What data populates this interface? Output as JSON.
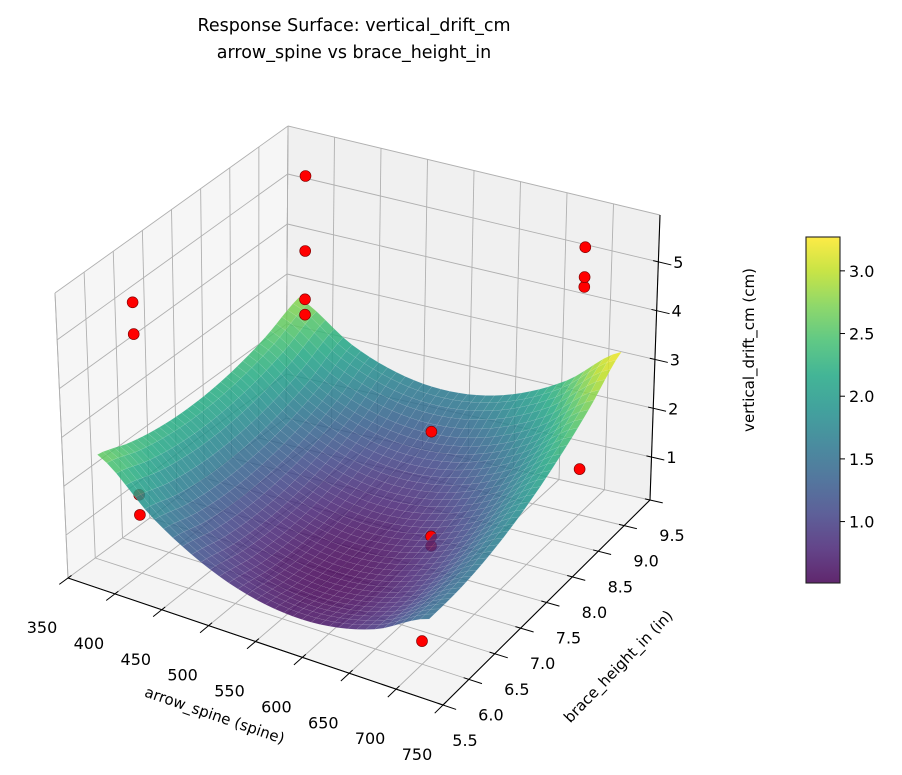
{
  "chart_data": {
    "type": "surface",
    "title": "Response Surface: vertical_drift_cm",
    "subtitle": "arrow_spine vs brace_height_in",
    "xlabel": "arrow_spine (spine)",
    "ylabel": "brace_height_in (in)",
    "zlabel": "vertical_drift_cm (cm)",
    "xlim": [
      350,
      750
    ],
    "ylim": [
      5.5,
      9.5
    ],
    "zlim": [
      0.12,
      5.96
    ],
    "xticks": [
      "350",
      "400",
      "450",
      "500",
      "550",
      "600",
      "650",
      "700",
      "750"
    ],
    "yticks": [
      "5.5",
      "6.0",
      "6.5",
      "7.0",
      "7.5",
      "8.0",
      "8.5",
      "9.0",
      "9.5"
    ],
    "zticks": [
      "1",
      "2",
      "3",
      "4",
      "5"
    ],
    "grid": true,
    "view": {
      "elev": 30,
      "azim": -60
    },
    "surface": {
      "colormap": "viridis",
      "alpha": 0.85,
      "x": [
        375,
        433.3,
        491.7,
        550,
        608.3,
        666.7,
        725
      ],
      "y": [
        5.7,
        6.3,
        6.9,
        7.5,
        8.1,
        8.7,
        9.3
      ],
      "z": [
        [
          2.64,
          1.682,
          1.031,
          0.688,
          0.651,
          0.922,
          1.5
        ],
        [
          2.392,
          1.479,
          0.872,
          0.572,
          0.58,
          0.895,
          1.518
        ],
        [
          2.254,
          1.385,
          0.822,
          0.567,
          0.619,
          0.978,
          1.644
        ],
        [
          2.226,
          1.401,
          0.882,
          0.671,
          0.767,
          1.171,
          1.881
        ],
        [
          2.308,
          1.526,
          1.052,
          0.885,
          1.026,
          1.474,
          2.228
        ],
        [
          2.499,
          1.762,
          1.332,
          1.209,
          1.393,
          1.885,
          2.684
        ],
        [
          2.8,
          2.107,
          1.721,
          1.643,
          1.871,
          2.407,
          3.25
        ]
      ]
    },
    "colorbar": {
      "range": [
        0.51,
        3.27
      ],
      "ticks": [
        "1.0",
        "1.5",
        "2.0",
        "2.5",
        "3.0"
      ]
    },
    "points": {
      "color": "#ff0000",
      "data": [
        {
          "x": 400,
          "y": 6.0,
          "z": 5.65
        },
        {
          "x": 400,
          "y": 6.0,
          "z": 5.0
        },
        {
          "x": 400,
          "y": 6.0,
          "z": 1.72
        },
        {
          "x": 400,
          "y": 6.0,
          "z": 1.31
        },
        {
          "x": 400,
          "y": 9.0,
          "z": 5.61
        },
        {
          "x": 400,
          "y": 9.0,
          "z": 4.1
        },
        {
          "x": 400,
          "y": 9.0,
          "z": 3.13
        },
        {
          "x": 400,
          "y": 9.0,
          "z": 2.82
        },
        {
          "x": 700,
          "y": 9.0,
          "z": 5.58
        },
        {
          "x": 700,
          "y": 9.0,
          "z": 4.97
        },
        {
          "x": 700,
          "y": 9.0,
          "z": 4.77
        },
        {
          "x": 700,
          "y": 9.0,
          "z": 1.05
        },
        {
          "x": 625,
          "y": 7.5,
          "z": 2.93
        },
        {
          "x": 625,
          "y": 7.5,
          "z": 0.8
        },
        {
          "x": 625,
          "y": 7.5,
          "z": 0.61
        },
        {
          "x": 700,
          "y": 6.0,
          "z": 0.59
        }
      ]
    }
  }
}
